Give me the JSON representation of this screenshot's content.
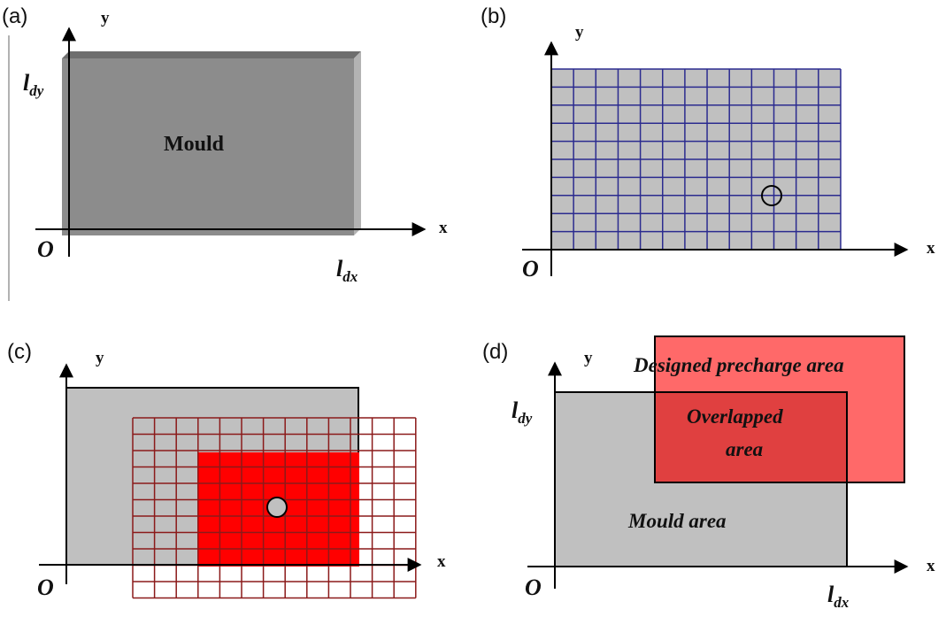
{
  "panels": {
    "a": {
      "tag": "(a)",
      "axis_x": "x",
      "axis_y": "y",
      "origin": "O",
      "dim_y": "l",
      "dim_y_sub": "dy",
      "dim_x": "l",
      "dim_x_sub": "dx",
      "block_label": "Mould"
    },
    "b": {
      "tag": "(b)",
      "axis_x": "x",
      "axis_y": "y",
      "origin": "O"
    },
    "c": {
      "tag": "(c)",
      "axis_x": "x",
      "axis_y": "y",
      "origin": "O"
    },
    "d": {
      "tag": "(d)",
      "axis_x": "x",
      "axis_y": "y",
      "origin": "O",
      "dim_y": "l",
      "dim_y_sub": "dy",
      "dim_x": "l",
      "dim_x_sub": "dx",
      "precharge_label": "Designed precharge area",
      "overlap_label_1": "Overlapped",
      "overlap_label_2": "area",
      "mould_label": "Mould area"
    }
  },
  "colors": {
    "mould_gray": "#8c8c8c",
    "light_gray": "#c0c0c0",
    "grid_blue": "#2b2b8f",
    "grid_red": "#8b1a1a",
    "overlap_red": "#ff0000",
    "precharge_red": "#ff6060"
  }
}
